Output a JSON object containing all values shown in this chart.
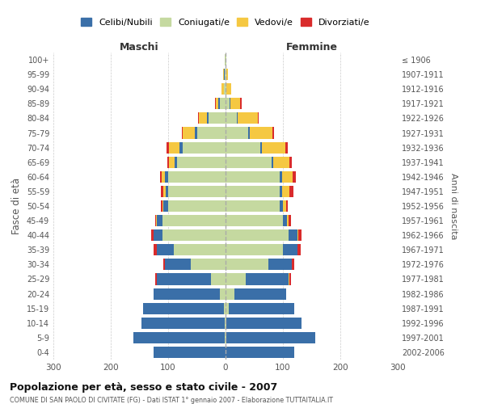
{
  "age_groups": [
    "0-4",
    "5-9",
    "10-14",
    "15-19",
    "20-24",
    "25-29",
    "30-34",
    "35-39",
    "40-44",
    "45-49",
    "50-54",
    "55-59",
    "60-64",
    "65-69",
    "70-74",
    "75-79",
    "80-84",
    "85-89",
    "90-94",
    "95-99",
    "100+"
  ],
  "birth_years": [
    "2002-2006",
    "1997-2001",
    "1992-1996",
    "1987-1991",
    "1982-1986",
    "1977-1981",
    "1972-1976",
    "1967-1971",
    "1962-1966",
    "1957-1961",
    "1952-1956",
    "1947-1951",
    "1942-1946",
    "1937-1941",
    "1932-1936",
    "1927-1931",
    "1922-1926",
    "1917-1921",
    "1912-1916",
    "1907-1911",
    "≤ 1906"
  ],
  "maschi": {
    "celibi": [
      125,
      160,
      145,
      140,
      115,
      95,
      45,
      30,
      15,
      10,
      8,
      4,
      5,
      4,
      5,
      4,
      2,
      2,
      0,
      1,
      0
    ],
    "coniugati": [
      0,
      1,
      2,
      3,
      10,
      25,
      60,
      90,
      110,
      110,
      100,
      100,
      100,
      85,
      75,
      50,
      30,
      10,
      3,
      2,
      1
    ],
    "vedovi": [
      0,
      0,
      0,
      0,
      0,
      0,
      0,
      0,
      0,
      1,
      2,
      4,
      6,
      10,
      18,
      20,
      15,
      5,
      4,
      1,
      0
    ],
    "divorziati": [
      0,
      0,
      0,
      0,
      1,
      2,
      3,
      5,
      5,
      2,
      3,
      5,
      3,
      3,
      5,
      2,
      1,
      2,
      0,
      0,
      0
    ]
  },
  "femmine": {
    "nubili": [
      120,
      155,
      130,
      115,
      90,
      75,
      40,
      25,
      15,
      7,
      5,
      4,
      4,
      3,
      4,
      2,
      1,
      1,
      0,
      1,
      0
    ],
    "coniugate": [
      0,
      1,
      2,
      5,
      15,
      35,
      75,
      100,
      110,
      100,
      95,
      95,
      95,
      80,
      60,
      40,
      20,
      7,
      2,
      1,
      1
    ],
    "vedove": [
      0,
      0,
      0,
      0,
      0,
      1,
      1,
      1,
      2,
      3,
      5,
      12,
      18,
      28,
      40,
      40,
      35,
      18,
      8,
      2,
      0
    ],
    "divorziate": [
      0,
      0,
      0,
      0,
      1,
      3,
      4,
      5,
      6,
      4,
      4,
      8,
      5,
      4,
      5,
      3,
      2,
      2,
      0,
      0,
      0
    ]
  },
  "colors": {
    "celibi": "#3a6fa8",
    "coniugati": "#c5d9a0",
    "vedovi": "#f5c842",
    "divorziati": "#d92b2b"
  },
  "xlim": 300,
  "title": "Popolazione per età, sesso e stato civile - 2007",
  "subtitle": "COMUNE DI SAN PAOLO DI CIVITATE (FG) - Dati ISTAT 1° gennaio 2007 - Elaborazione TUTTAITALIA.IT",
  "ylabel": "Fasce di età",
  "right_ylabel": "Anni di nascita",
  "legend_labels": [
    "Celibi/Nubili",
    "Coniugati/e",
    "Vedovi/e",
    "Divorziati/e"
  ],
  "maschi_label": "Maschi",
  "femmine_label": "Femmine",
  "background_color": "#ffffff",
  "grid_color": "#cccccc"
}
